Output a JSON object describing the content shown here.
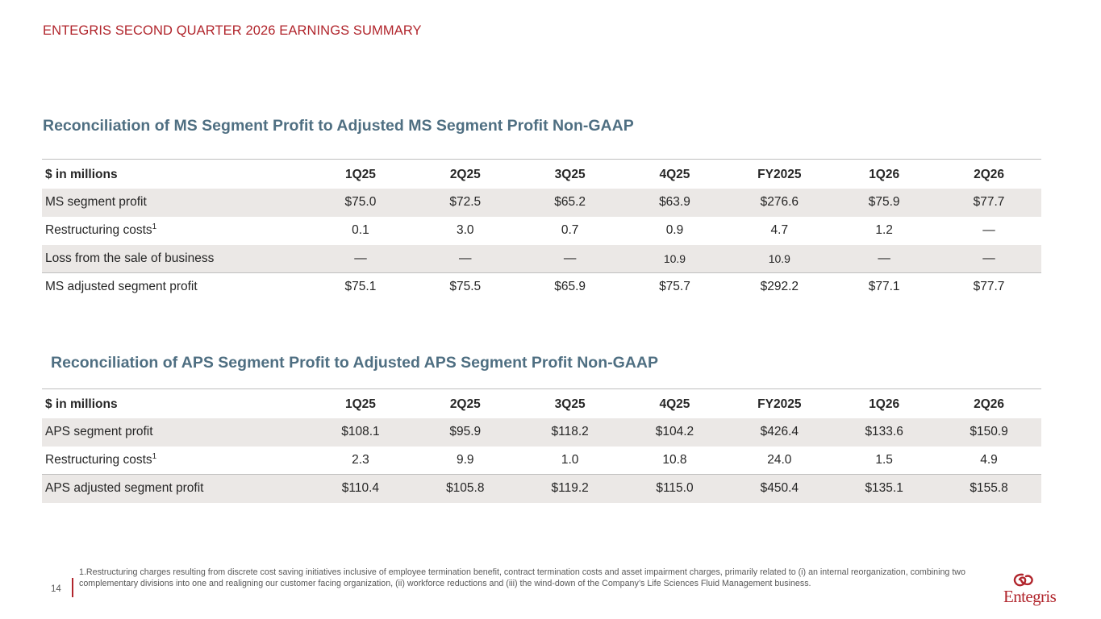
{
  "header": {
    "title": "ENTEGRIS SECOND QUARTER 2026 EARNINGS SUMMARY"
  },
  "ms_section": {
    "title": "Reconciliation of MS Segment Profit to Adjusted MS Segment Profit Non-GAAP",
    "table": {
      "header": {
        "label": "$ in millions",
        "cols": [
          "1Q25",
          "2Q25",
          "3Q25",
          "4Q25",
          "FY2025",
          "1Q26",
          "2Q26"
        ]
      },
      "rows": [
        {
          "label": "MS segment profit",
          "values": [
            "$75.0",
            "$72.5",
            "$65.2",
            "$63.9",
            "$276.6",
            "$75.9",
            "$77.7"
          ]
        },
        {
          "label": "Restructuring costs",
          "footnote": "1",
          "values": [
            "0.1",
            "3.0",
            "0.7",
            "0.9",
            "4.7",
            "1.2",
            "—"
          ]
        },
        {
          "label": "Loss from the sale of business",
          "values": [
            "—",
            "—",
            "—",
            "10.9",
            "10.9",
            "—",
            "—"
          ]
        },
        {
          "label": "MS adjusted segment profit",
          "values": [
            "$75.1",
            "$75.5",
            "$65.9",
            "$75.7",
            "$292.2",
            "$77.1",
            "$77.7"
          ]
        }
      ]
    }
  },
  "aps_section": {
    "title": "Reconciliation of APS Segment Profit to Adjusted APS Segment Profit Non-GAAP",
    "table": {
      "header": {
        "label": "$ in millions",
        "cols": [
          "1Q25",
          "2Q25",
          "3Q25",
          "4Q25",
          "FY2025",
          "1Q26",
          "2Q26"
        ]
      },
      "rows": [
        {
          "label": "APS segment profit",
          "values": [
            "$108.1",
            "$95.9",
            "$118.2",
            "$104.2",
            "$426.4",
            "$133.6",
            "$150.9"
          ]
        },
        {
          "label": "Restructuring costs",
          "footnote": "1",
          "values": [
            "2.3",
            "9.9",
            "1.0",
            "10.8",
            "24.0",
            "1.5",
            "4.9"
          ]
        },
        {
          "label": "APS adjusted segment profit",
          "values": [
            "$110.4",
            "$105.8",
            "$119.2",
            "$115.0",
            "$450.4",
            "$135.1",
            "$155.8"
          ]
        }
      ]
    }
  },
  "footer": {
    "page_number": "14",
    "footnote": "1.Restructuring charges resulting from discrete cost saving initiatives inclusive of employee termination benefit, contract termination costs and asset impairment charges, primarily related to (i) an internal reorganization, combining two complementary divisions into one and realigning our customer facing organization, (ii) workforce reductions and (iii) the wind-down of the Company’s Life Sciences Fluid Management business.",
    "logo_text": "Entegris"
  },
  "colors": {
    "accent_red": "#b1252c",
    "title_blue": "#4f6f82",
    "row_shade": "#ebe8e6"
  },
  "icons": {
    "logo_mark": "entegris-swirl-icon"
  }
}
